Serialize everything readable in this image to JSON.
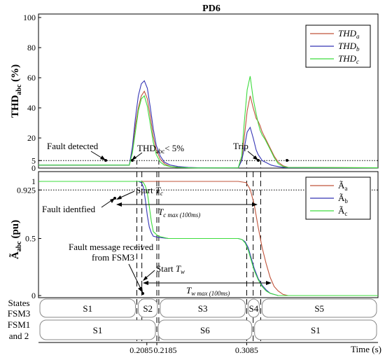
{
  "chart_data": [
    {
      "type": "line",
      "title": "PD6",
      "ylabel": "THD",
      "ylabel_sub": "abc",
      "ylabel_unit": " (%)",
      "ylim": [
        0,
        100
      ],
      "yticks": [
        0,
        5,
        20,
        40,
        60,
        80,
        100
      ],
      "xlim": [
        0.1,
        0.44
      ],
      "legend": "top-right",
      "threshold": 5,
      "series": [
        {
          "name": "THD",
          "sub": "a",
          "color": "#c0533a",
          "x": [
            0.1,
            0.191,
            0.194,
            0.197,
            0.2,
            0.203,
            0.206,
            0.209,
            0.212,
            0.215,
            0.218,
            0.222,
            0.226,
            0.232,
            0.24,
            0.25,
            0.26,
            0.3,
            0.3035,
            0.306,
            0.309,
            0.312,
            0.315,
            0.318,
            0.32,
            0.322,
            0.324,
            0.327,
            0.33,
            0.333,
            0.336,
            0.34,
            0.345,
            0.35,
            0.44
          ],
          "y": [
            2,
            2,
            12,
            28,
            40,
            48,
            51,
            46,
            34,
            21,
            12,
            6,
            3,
            1,
            0.5,
            0.3,
            0.2,
            0.2,
            6,
            20,
            38,
            48,
            40,
            33,
            31,
            28,
            24,
            20,
            16,
            12,
            8,
            4,
            1.5,
            0.5,
            0.2
          ]
        },
        {
          "name": "THD",
          "sub": "b",
          "color": "#3535b5",
          "x": [
            0.1,
            0.191,
            0.194,
            0.197,
            0.2,
            0.203,
            0.206,
            0.209,
            0.212,
            0.215,
            0.218,
            0.222,
            0.226,
            0.232,
            0.24,
            0.25,
            0.26,
            0.3,
            0.3035,
            0.306,
            0.309,
            0.312,
            0.315,
            0.318,
            0.32,
            0.322,
            0.324,
            0.327,
            0.33,
            0.333,
            0.336,
            0.34,
            0.345,
            0.35,
            0.44
          ],
          "y": [
            2,
            2,
            14,
            33,
            48,
            56,
            58,
            53,
            40,
            26,
            15,
            8,
            4,
            2,
            1,
            0.4,
            0.2,
            0.2,
            5,
            13,
            24,
            27,
            20,
            12,
            9,
            7,
            5,
            4,
            3,
            2,
            1.5,
            1,
            0.5,
            0.3,
            0.2
          ]
        },
        {
          "name": "THD",
          "sub": "c",
          "color": "#3ddc3d",
          "x": [
            0.1,
            0.191,
            0.194,
            0.197,
            0.2,
            0.203,
            0.206,
            0.209,
            0.212,
            0.215,
            0.218,
            0.222,
            0.226,
            0.232,
            0.24,
            0.25,
            0.26,
            0.3,
            0.3035,
            0.306,
            0.309,
            0.312,
            0.315,
            0.318,
            0.32,
            0.322,
            0.324,
            0.327,
            0.33,
            0.333,
            0.336,
            0.34,
            0.345,
            0.35,
            0.44
          ],
          "y": [
            2,
            2,
            10,
            24,
            38,
            46,
            48,
            41,
            29,
            17,
            9,
            4,
            2,
            1,
            0.4,
            0.2,
            0.1,
            0.2,
            8,
            30,
            52,
            61,
            46,
            36,
            30,
            25,
            22,
            19,
            15,
            11,
            7,
            3,
            1,
            0.4,
            0.2
          ]
        }
      ],
      "annotations": [
        "Fault detected",
        "< 5%",
        "Trip"
      ],
      "annotation_thd": "THD",
      "annotation_sub": "abc"
    },
    {
      "type": "line",
      "ylabel": "Ã",
      "ylabel_sub": "abc",
      "ylabel_unit": " (pu)",
      "ylim": [
        0,
        1.08
      ],
      "yticks": [
        0,
        0.5,
        0.925,
        1
      ],
      "xlim": [
        0.1,
        0.44
      ],
      "xlabel": "Time (s)",
      "xticks": [
        0.2085,
        0.2185,
        0.3085
      ],
      "legend": "top-right",
      "threshold": 0.925,
      "series": [
        {
          "name": "Ã",
          "sub": "a",
          "color": "#c0533a",
          "x": [
            0.1,
            0.2,
            0.203,
            0.205,
            0.207,
            0.209,
            0.211,
            0.213,
            0.215,
            0.22,
            0.23,
            0.25,
            0.3,
            0.308,
            0.312,
            0.316,
            0.32,
            0.324,
            0.328,
            0.332,
            0.336,
            0.34,
            0.345,
            0.35,
            0.44
          ],
          "y": [
            1,
            1,
            1,
            1,
            1,
            1,
            1,
            1,
            1,
            1,
            1,
            1,
            1,
            0.99,
            0.93,
            0.8,
            0.6,
            0.42,
            0.28,
            0.16,
            0.08,
            0.04,
            0.01,
            0,
            0
          ]
        },
        {
          "name": "Ã",
          "sub": "b",
          "color": "#3535b5",
          "x": [
            0.1,
            0.2,
            0.203,
            0.205,
            0.207,
            0.209,
            0.211,
            0.213,
            0.215,
            0.22,
            0.23,
            0.25,
            0.3,
            0.304,
            0.307,
            0.31,
            0.313,
            0.316,
            0.32,
            0.324,
            0.328,
            0.332,
            0.336,
            0.34,
            0.35,
            0.44
          ],
          "y": [
            1,
            1,
            0.99,
            0.95,
            0.84,
            0.7,
            0.6,
            0.55,
            0.52,
            0.51,
            0.5,
            0.5,
            0.5,
            0.49,
            0.47,
            0.42,
            0.33,
            0.24,
            0.15,
            0.09,
            0.05,
            0.02,
            0.01,
            0,
            0,
            0
          ]
        },
        {
          "name": "Ã",
          "sub": "c",
          "color": "#3ddc3d",
          "x": [
            0.1,
            0.2,
            0.203,
            0.205,
            0.207,
            0.209,
            0.211,
            0.213,
            0.215,
            0.22,
            0.23,
            0.25,
            0.3,
            0.304,
            0.307,
            0.31,
            0.313,
            0.316,
            0.32,
            0.324,
            0.328,
            0.332,
            0.336,
            0.34,
            0.35,
            0.44
          ],
          "y": [
            1,
            1,
            1,
            0.99,
            0.96,
            0.9,
            0.78,
            0.65,
            0.56,
            0.52,
            0.5,
            0.5,
            0.5,
            0.49,
            0.46,
            0.4,
            0.31,
            0.22,
            0.14,
            0.08,
            0.04,
            0.02,
            0.01,
            0,
            0,
            0
          ]
        }
      ],
      "annotations": {
        "start_tc": "Start",
        "tc_symbol": "T",
        "tc_sub": "c",
        "fault_identified": "Fault identfied",
        "tc_max_symbol": "T",
        "tc_max_sub": "c max",
        "tc_max_note": " (100ms)",
        "fault_msg_line1": "Fault message received",
        "fault_msg_line2": "from FSM3",
        "start_tw": "Start",
        "tw_symbol": "T",
        "tw_sub": "w",
        "tw_max_symbol": "T",
        "tw_max_sub": "w max",
        "tw_max_note": " (100ms)"
      }
    }
  ],
  "states": {
    "fsm3_label_line1": "States",
    "fsm3_label_line2": "FSM3",
    "fsm12_label_line1": "FSM1",
    "fsm12_label_line2": "and 2",
    "fsm3": [
      {
        "label": "S1",
        "t0": 0.1,
        "t1": 0.1985
      },
      {
        "label": "S2",
        "t0": 0.1985,
        "t1": 0.2205
      },
      {
        "label": "S3",
        "t0": 0.2205,
        "t1": 0.3085
      },
      {
        "label": "S4",
        "t0": 0.3085,
        "t1": 0.3225
      },
      {
        "label": "S5",
        "t0": 0.3225,
        "t1": 0.44
      }
    ],
    "fsm12": [
      {
        "label": "S1",
        "t0": 0.1,
        "t1": 0.2185
      },
      {
        "label": "S6",
        "t0": 0.2185,
        "t1": 0.315
      },
      {
        "label": "S1",
        "t0": 0.315,
        "t1": 0.44
      }
    ]
  }
}
